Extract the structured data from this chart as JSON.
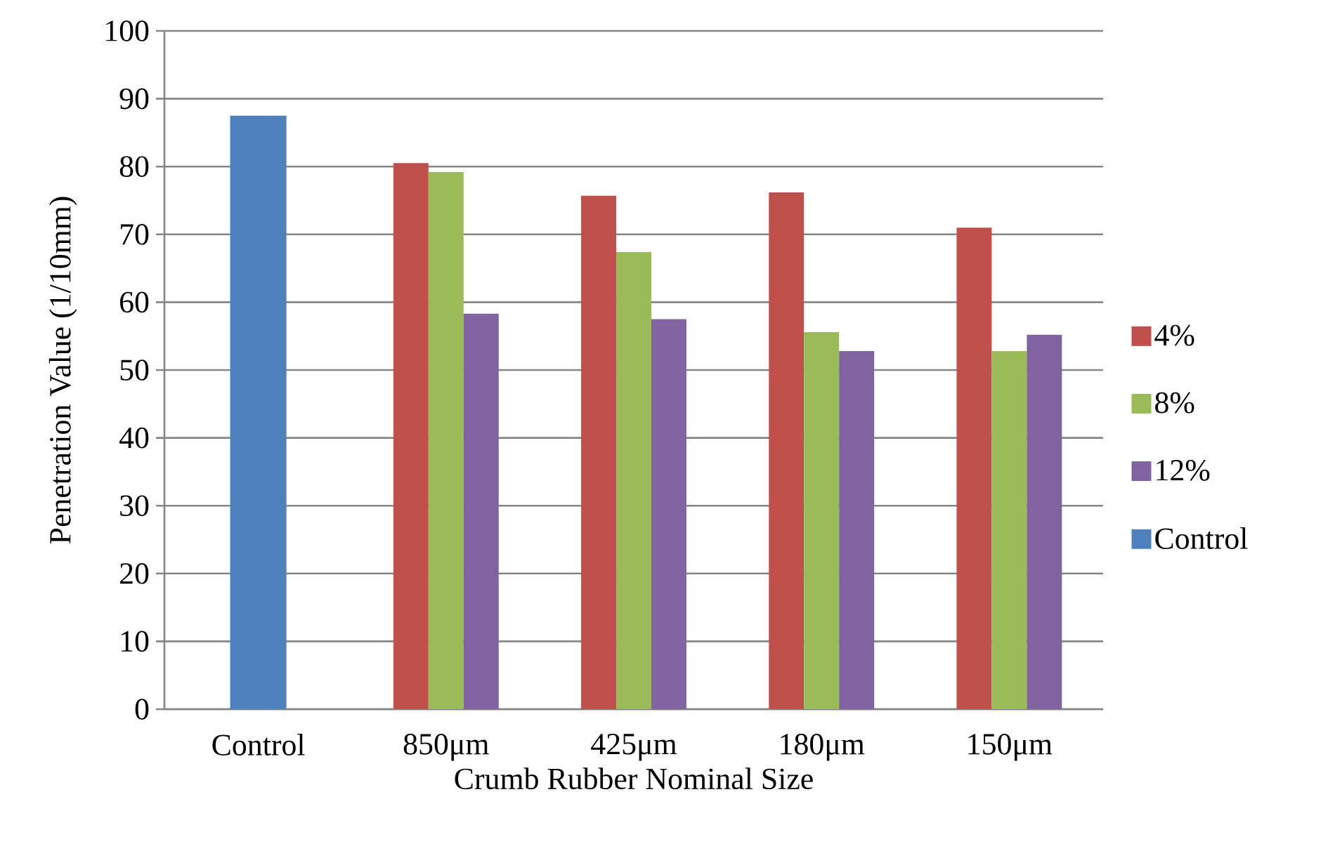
{
  "chart_data": {
    "type": "bar",
    "xlabel": "Crumb Rubber Nominal Size",
    "ylabel": "Penetration Value (1/10mm)",
    "categories": [
      "Control",
      "850μm",
      "425μm",
      "180μm",
      "150μm"
    ],
    "series": [
      {
        "name": "4%",
        "color": "#c0504d",
        "values": [
          null,
          80.5,
          75.7,
          76.2,
          71.0
        ]
      },
      {
        "name": "8%",
        "color": "#9bbb59",
        "values": [
          null,
          79.2,
          67.4,
          55.6,
          52.8
        ]
      },
      {
        "name": "12%",
        "color": "#8064a2",
        "values": [
          null,
          58.3,
          57.5,
          52.8,
          55.2
        ]
      },
      {
        "name": "Control",
        "color": "#4f81bd",
        "values": [
          87.5,
          null,
          null,
          null,
          null
        ]
      }
    ],
    "ylim": [
      0,
      100
    ],
    "yticks": [
      0,
      10,
      20,
      30,
      40,
      50,
      60,
      70,
      80,
      90,
      100
    ],
    "grid": "y",
    "legend": "right"
  }
}
